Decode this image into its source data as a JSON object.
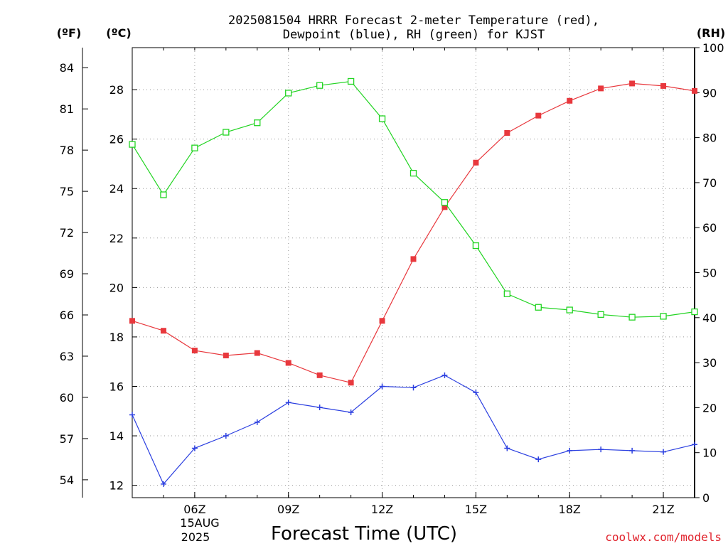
{
  "chart_data": {
    "type": "line",
    "title": {
      "line1": "2025081504 HRRR Forecast 2-meter Temperature (red),",
      "line2": "Dewpoint (blue), RH (green) for KJST"
    },
    "xlabel": "Forecast Time (UTC)",
    "date_label": {
      "day": "15AUG",
      "year": "2025"
    },
    "credit": "coolwx.com/models",
    "x_hours": [
      4,
      5,
      6,
      7,
      8,
      9,
      10,
      11,
      12,
      13,
      14,
      15,
      16,
      17,
      18,
      19,
      20,
      21,
      22
    ],
    "x_range_hours": [
      4,
      22
    ],
    "x_ticks": [
      {
        "hour": 6,
        "label": "06Z"
      },
      {
        "hour": 9,
        "label": "09Z"
      },
      {
        "hour": 12,
        "label": "12Z"
      },
      {
        "hour": 15,
        "label": "15Z"
      },
      {
        "hour": 18,
        "label": "18Z"
      },
      {
        "hour": 21,
        "label": "21Z"
      }
    ],
    "axes": {
      "celsius": {
        "unit_label": "(ºC)",
        "range": [
          11.5,
          29.7
        ],
        "ticks": [
          12,
          14,
          16,
          18,
          20,
          22,
          24,
          26,
          28
        ],
        "tick_labels": [
          "12",
          "14",
          "16",
          "18",
          "20",
          "22",
          "24",
          "26",
          "28"
        ]
      },
      "fahrenheit": {
        "unit_label": "(ºF)",
        "ticks": [
          54,
          57,
          60,
          63,
          66,
          69,
          72,
          75,
          78,
          81,
          84
        ],
        "tick_labels": [
          "54",
          "57",
          "60",
          "63",
          "66",
          "69",
          "72",
          "75",
          "78",
          "81",
          "84"
        ]
      },
      "rh": {
        "unit_label": "(RH)",
        "range": [
          0,
          100
        ],
        "ticks": [
          0,
          10,
          20,
          30,
          40,
          50,
          60,
          70,
          80,
          90,
          100
        ],
        "tick_labels": [
          "0",
          "10",
          "20",
          "30",
          "40",
          "50",
          "60",
          "70",
          "80",
          "90",
          "100"
        ]
      }
    },
    "grid": true,
    "series": [
      {
        "name": "Temperature",
        "axis": "celsius",
        "color": "#e8383d",
        "marker": "filled-square",
        "values": [
          18.65,
          18.25,
          17.45,
          17.25,
          17.35,
          16.95,
          16.45,
          16.15,
          18.65,
          21.15,
          23.25,
          25.05,
          26.25,
          26.95,
          27.55,
          28.05,
          28.25,
          28.15,
          27.95
        ]
      },
      {
        "name": "Dewpoint",
        "axis": "celsius",
        "color": "#2b3fe0",
        "marker": "plus",
        "values": [
          14.85,
          12.05,
          13.5,
          14.0,
          14.55,
          15.35,
          15.15,
          14.95,
          16.0,
          15.95,
          16.45,
          15.75,
          13.5,
          13.05,
          13.4,
          13.45,
          13.4,
          13.35,
          13.65
        ]
      },
      {
        "name": "Relative Humidity",
        "axis": "rh",
        "color": "#22d422",
        "marker": "open-square",
        "values": [
          78.5,
          67.3,
          77.7,
          81.2,
          83.3,
          89.9,
          91.6,
          92.5,
          84.2,
          72.1,
          65.6,
          56.0,
          45.3,
          42.3,
          41.7,
          40.7,
          40.1,
          40.3,
          41.3
        ]
      }
    ]
  }
}
